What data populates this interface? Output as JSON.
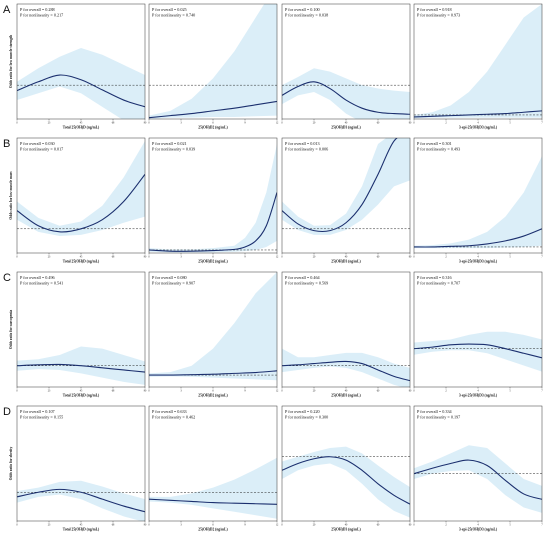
{
  "figure": {
    "rows": [
      {
        "label": "A",
        "ylabel": "Odds ratio for low muscle strength"
      },
      {
        "label": "B",
        "ylabel": "Odds ratio for low muscle mass"
      },
      {
        "label": "C",
        "ylabel": "Odds ratio for sarcopenia"
      },
      {
        "label": "D",
        "ylabel": "Odds ratio for obesity"
      }
    ],
    "columns": [
      {
        "xlabel": "Total 25(OH)D (ng/mL)"
      },
      {
        "xlabel": "25(OH)D2 (ng/mL)"
      },
      {
        "xlabel": "25(OH)D3 (ng/mL)"
      },
      {
        "xlabel": "3-epi-25(OH)D3 (ng/mL)"
      }
    ]
  },
  "chart_data": [
    {
      "type": "line",
      "row": "A",
      "xlabel": "Total 25(OH)D (ng/mL)",
      "p_overall": "P for overall = 0.288",
      "p_nonlinear": "P for nonlinearity = 0.217",
      "x": [
        0,
        15,
        30,
        45,
        60,
        75,
        90
      ],
      "y": [
        0.92,
        1.05,
        1.15,
        1.08,
        0.93,
        0.78,
        0.68
      ],
      "lower": [
        0.78,
        0.88,
        0.98,
        0.88,
        0.68,
        0.48,
        0.32
      ],
      "upper": [
        1.05,
        1.25,
        1.42,
        1.55,
        1.45,
        1.3,
        1.15
      ],
      "ref": 1.0,
      "xlim": [
        0,
        90
      ],
      "ylim": [
        0.5,
        2.2
      ]
    },
    {
      "type": "line",
      "row": "A",
      "xlabel": "25(OH)D2 (ng/mL)",
      "p_overall": "P for overall = 0.025",
      "p_nonlinear": "P for nonlinearity = 0.740",
      "x": [
        0,
        2,
        4,
        6,
        8,
        10,
        12
      ],
      "y": [
        0.52,
        0.55,
        0.58,
        0.62,
        0.66,
        0.71,
        0.76
      ],
      "lower": [
        0.5,
        0.52,
        0.52,
        0.53,
        0.53,
        0.54,
        0.55
      ],
      "upper": [
        0.55,
        0.62,
        0.8,
        1.1,
        1.5,
        2.0,
        2.5
      ],
      "ref": 1.0,
      "xlim": [
        0,
        12
      ],
      "ylim": [
        0.5,
        2.2
      ]
    },
    {
      "type": "line",
      "row": "A",
      "xlabel": "25(OH)D3 (ng/mL)",
      "p_overall": "P for overall = 0.100",
      "p_nonlinear": "P for nonlinearity = 0.038",
      "x": [
        0,
        10,
        20,
        30,
        40,
        50,
        60,
        70,
        80
      ],
      "y": [
        0.85,
        0.98,
        1.05,
        0.95,
        0.78,
        0.66,
        0.6,
        0.58,
        0.57
      ],
      "lower": [
        0.72,
        0.85,
        0.9,
        0.78,
        0.58,
        0.45,
        0.4,
        0.38,
        0.36
      ],
      "upper": [
        1.0,
        1.12,
        1.25,
        1.2,
        1.1,
        1.0,
        0.95,
        0.92,
        0.9
      ],
      "ref": 1.0,
      "xlim": [
        0,
        80
      ],
      "ylim": [
        0.5,
        2.2
      ]
    },
    {
      "type": "line",
      "row": "A",
      "xlabel": "3-epi-25(OH)D3 (ng/mL)",
      "p_overall": "P for overall = 0.918",
      "p_nonlinear": "P for nonlinearity = 0.973",
      "x": [
        0,
        1,
        2,
        3,
        4,
        5,
        6,
        7
      ],
      "y": [
        0.53,
        0.54,
        0.55,
        0.56,
        0.57,
        0.58,
        0.6,
        0.62
      ],
      "lower": [
        0.51,
        0.52,
        0.52,
        0.52,
        0.52,
        0.52,
        0.52,
        0.52
      ],
      "upper": [
        0.56,
        0.6,
        0.7,
        0.9,
        1.2,
        1.6,
        2.0,
        2.2
      ],
      "ref": 0.56,
      "xlim": [
        0,
        7
      ],
      "ylim": [
        0.5,
        2.2
      ]
    },
    {
      "type": "line",
      "row": "B",
      "xlabel": "Total 25(OH)D (ng/mL)",
      "p_overall": "P for overall = 0.030",
      "p_nonlinear": "P for nonlinearity = 0.017",
      "x": [
        0,
        15,
        30,
        45,
        60,
        75,
        90
      ],
      "y": [
        1.3,
        1.05,
        0.95,
        1.0,
        1.15,
        1.45,
        1.9
      ],
      "lower": [
        1.15,
        0.95,
        0.88,
        0.9,
        0.98,
        1.1,
        1.2
      ],
      "upper": [
        1.45,
        1.18,
        1.05,
        1.12,
        1.38,
        1.85,
        2.45
      ],
      "ref": 1.0,
      "xlim": [
        0,
        90
      ],
      "ylim": [
        0.6,
        2.5
      ]
    },
    {
      "type": "line",
      "row": "B",
      "xlabel": "25(OH)D2 (ng/mL)",
      "p_overall": "P for overall = 0.021",
      "p_nonlinear": "P for nonlinearity = 0.039",
      "x": [
        0,
        2,
        4,
        6,
        8,
        9,
        10,
        11,
        12
      ],
      "y": [
        0.65,
        0.63,
        0.63,
        0.64,
        0.66,
        0.7,
        0.8,
        1.05,
        1.6
      ],
      "lower": [
        0.62,
        0.61,
        0.61,
        0.61,
        0.62,
        0.63,
        0.65,
        0.7,
        0.8
      ],
      "upper": [
        0.68,
        0.66,
        0.66,
        0.68,
        0.72,
        0.85,
        1.1,
        1.6,
        2.4
      ],
      "ref": 0.65,
      "xlim": [
        0,
        12
      ],
      "ylim": [
        0.6,
        2.5
      ]
    },
    {
      "type": "line",
      "row": "B",
      "xlabel": "25(OH)D3 (ng/mL)",
      "p_overall": "P for overall = 0.013",
      "p_nonlinear": "P for nonlinearity = 0.006",
      "x": [
        0,
        10,
        20,
        30,
        40,
        50,
        60,
        70,
        80
      ],
      "y": [
        1.3,
        1.08,
        0.97,
        0.97,
        1.1,
        1.4,
        1.9,
        2.45,
        2.6
      ],
      "lower": [
        1.15,
        0.98,
        0.9,
        0.9,
        0.98,
        1.15,
        1.4,
        1.7,
        1.8
      ],
      "upper": [
        1.45,
        1.2,
        1.05,
        1.06,
        1.25,
        1.7,
        2.4,
        2.6,
        2.6
      ],
      "ref": 1.0,
      "xlim": [
        0,
        80
      ],
      "ylim": [
        0.6,
        2.5
      ]
    },
    {
      "type": "line",
      "row": "B",
      "xlabel": "3-epi-25(OH)D3 (ng/mL)",
      "p_overall": "P for overall = 0.301",
      "p_nonlinear": "P for nonlinearity = 0.493",
      "x": [
        0,
        1,
        2,
        3,
        4,
        5,
        6,
        7
      ],
      "y": [
        0.7,
        0.7,
        0.71,
        0.72,
        0.75,
        0.8,
        0.88,
        1.0
      ],
      "lower": [
        0.68,
        0.68,
        0.68,
        0.68,
        0.68,
        0.69,
        0.7,
        0.72
      ],
      "upper": [
        0.72,
        0.73,
        0.76,
        0.82,
        0.95,
        1.2,
        1.6,
        2.2
      ],
      "ref": 0.7,
      "xlim": [
        0,
        7
      ],
      "ylim": [
        0.6,
        2.5
      ]
    },
    {
      "type": "line",
      "row": "C",
      "xlabel": "Total 25(OH)D (ng/mL)",
      "p_overall": "P for overall = 0.496",
      "p_nonlinear": "P for nonlinearity = 0.541",
      "x": [
        0,
        15,
        30,
        45,
        60,
        75,
        90
      ],
      "y": [
        1.0,
        1.02,
        1.03,
        1.0,
        0.95,
        0.9,
        0.85
      ],
      "lower": [
        0.88,
        0.92,
        0.9,
        0.82,
        0.72,
        0.62,
        0.55
      ],
      "upper": [
        1.12,
        1.15,
        1.25,
        1.45,
        1.4,
        1.25,
        1.1
      ],
      "ref": 1.0,
      "xlim": [
        0,
        90
      ],
      "ylim": [
        0.5,
        3.2
      ]
    },
    {
      "type": "line",
      "row": "C",
      "xlabel": "25(OH)D2 (ng/mL)",
      "p_overall": "P for overall = 0.080",
      "p_nonlinear": "P for nonlinearity = 0.907",
      "x": [
        0,
        2,
        4,
        6,
        8,
        10,
        12
      ],
      "y": [
        0.78,
        0.78,
        0.79,
        0.8,
        0.82,
        0.84,
        0.88
      ],
      "lower": [
        0.74,
        0.75,
        0.74,
        0.72,
        0.7,
        0.68,
        0.66
      ],
      "upper": [
        0.82,
        0.85,
        1.0,
        1.4,
        2.0,
        2.7,
        3.2
      ],
      "ref": 0.78,
      "xlim": [
        0,
        12
      ],
      "ylim": [
        0.5,
        3.2
      ]
    },
    {
      "type": "line",
      "row": "C",
      "xlabel": "25(OH)D3 (ng/mL)",
      "p_overall": "P for overall = 0.464",
      "p_nonlinear": "P for nonlinearity = 0.569",
      "x": [
        0,
        10,
        20,
        30,
        40,
        50,
        60,
        70,
        80
      ],
      "y": [
        1.0,
        1.02,
        1.05,
        1.08,
        1.1,
        1.05,
        0.9,
        0.75,
        0.65
      ],
      "lower": [
        0.85,
        0.9,
        0.95,
        0.98,
        0.95,
        0.85,
        0.7,
        0.55,
        0.45
      ],
      "upper": [
        1.4,
        1.2,
        1.2,
        1.25,
        1.3,
        1.3,
        1.2,
        1.05,
        0.95
      ],
      "ref": 1.0,
      "xlim": [
        0,
        80
      ],
      "ylim": [
        0.5,
        3.2
      ]
    },
    {
      "type": "line",
      "row": "C",
      "xlabel": "3-epi-25(OH)D3 (ng/mL)",
      "p_overall": "P for overall = 0.316",
      "p_nonlinear": "P for nonlinearity = 0.707",
      "x": [
        0,
        1,
        2,
        3,
        4,
        5,
        6,
        7
      ],
      "y": [
        1.0,
        1.02,
        1.05,
        1.06,
        1.05,
        1.0,
        0.94,
        0.88
      ],
      "lower": [
        0.92,
        0.96,
        0.98,
        0.98,
        0.94,
        0.86,
        0.78,
        0.7
      ],
      "upper": [
        1.08,
        1.1,
        1.12,
        1.18,
        1.22,
        1.22,
        1.18,
        1.12
      ],
      "ref": 1.0,
      "xlim": [
        0,
        7
      ],
      "ylim": [
        0.5,
        2.0
      ]
    },
    {
      "type": "line",
      "row": "D",
      "xlabel": "Total 25(OH)D (ng/mL)",
      "p_overall": "P for overall = 0.107",
      "p_nonlinear": "P for nonlinearity = 0.155",
      "x": [
        0,
        15,
        30,
        45,
        60,
        75,
        90
      ],
      "y": [
        0.92,
        1.0,
        1.05,
        1.0,
        0.88,
        0.76,
        0.66
      ],
      "lower": [
        0.82,
        0.92,
        0.96,
        0.88,
        0.72,
        0.58,
        0.48
      ],
      "upper": [
        1.02,
        1.08,
        1.18,
        1.2,
        1.1,
        0.98,
        0.88
      ],
      "ref": 1.0,
      "xlim": [
        0,
        90
      ],
      "ylim": [
        0.5,
        2.5
      ]
    },
    {
      "type": "line",
      "row": "D",
      "xlabel": "25(OH)D2 (ng/mL)",
      "p_overall": "P for overall = 0.633",
      "p_nonlinear": "P for nonlinearity = 0.462",
      "x": [
        0,
        2,
        4,
        6,
        8,
        10,
        12
      ],
      "y": [
        0.88,
        0.86,
        0.84,
        0.82,
        0.81,
        0.8,
        0.79
      ],
      "lower": [
        0.84,
        0.82,
        0.78,
        0.72,
        0.66,
        0.6,
        0.54
      ],
      "upper": [
        0.92,
        0.92,
        0.98,
        1.08,
        1.22,
        1.4,
        1.6
      ],
      "ref": 1.0,
      "xlim": [
        0,
        12
      ],
      "ylim": [
        0.5,
        2.5
      ]
    },
    {
      "type": "line",
      "row": "D",
      "xlabel": "25(OH)D3 (ng/mL)",
      "p_overall": "P for overall = 0.220",
      "p_nonlinear": "P for nonlinearity = 0.300",
      "x": [
        0,
        10,
        20,
        30,
        40,
        50,
        60,
        70,
        80
      ],
      "y": [
        1.05,
        1.15,
        1.22,
        1.25,
        1.2,
        1.05,
        0.85,
        0.68,
        0.55
      ],
      "lower": [
        0.92,
        1.05,
        1.12,
        1.15,
        1.05,
        0.85,
        0.62,
        0.45,
        0.35
      ],
      "upper": [
        1.18,
        1.25,
        1.32,
        1.38,
        1.4,
        1.3,
        1.12,
        0.95,
        0.8
      ],
      "ref": 1.25,
      "xlim": [
        0,
        80
      ],
      "ylim": [
        0.3,
        2.0
      ]
    },
    {
      "type": "line",
      "row": "D",
      "xlabel": "3-epi-25(OH)D3 (ng/mL)",
      "p_overall": "P for overall = 0.334",
      "p_nonlinear": "P for nonlinearity = 0.197",
      "x": [
        0,
        1,
        2,
        3,
        4,
        5,
        6,
        7
      ],
      "y": [
        1.0,
        1.08,
        1.15,
        1.2,
        1.12,
        0.9,
        0.7,
        0.62
      ],
      "lower": [
        0.92,
        1.0,
        1.04,
        1.05,
        0.92,
        0.68,
        0.5,
        0.42
      ],
      "upper": [
        1.08,
        1.18,
        1.3,
        1.42,
        1.38,
        1.15,
        0.92,
        0.82
      ],
      "ref": 1.0,
      "xlim": [
        0,
        7
      ],
      "ylim": [
        0.3,
        2.0
      ]
    }
  ]
}
